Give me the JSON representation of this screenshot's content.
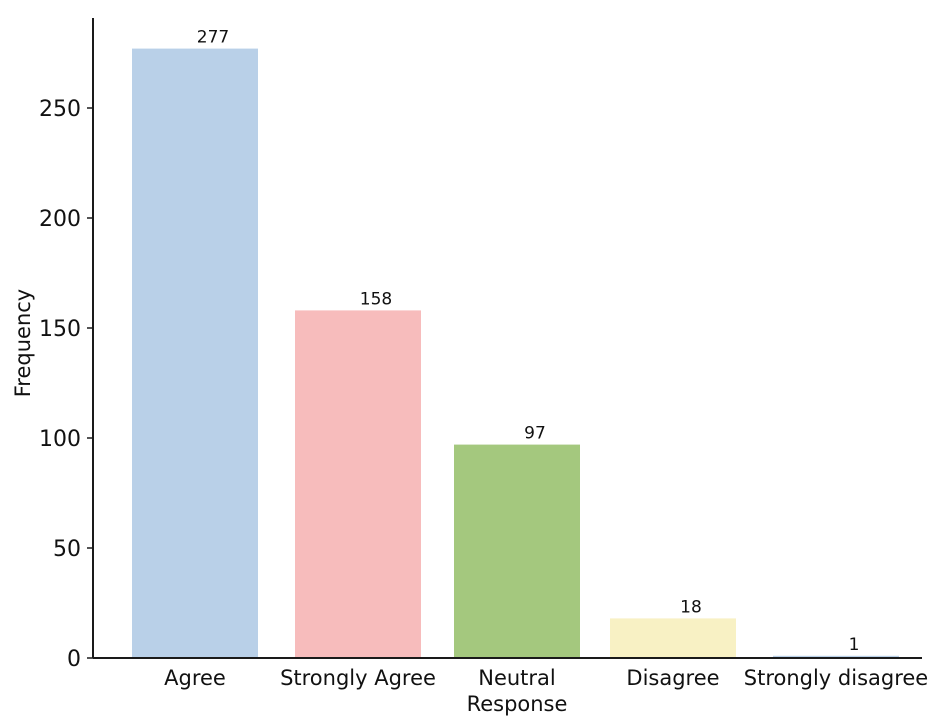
{
  "chart_data": {
    "type": "bar",
    "title": "",
    "xlabel": "",
    "ylabel": "Frequency",
    "categories": [
      "Agree",
      "Strongly Agree",
      "Neutral Response",
      "Disagree",
      "Strongly disagree"
    ],
    "category_label_lines": [
      [
        "Agree"
      ],
      [
        "Strongly Agree"
      ],
      [
        "Neutral",
        "Response"
      ],
      [
        "Disagree"
      ],
      [
        "Strongly disagree"
      ]
    ],
    "values": [
      277,
      158,
      97,
      18,
      1
    ],
    "data_labels": [
      "277",
      "158",
      "97",
      "18",
      "1"
    ],
    "colors": [
      "#b9d0e8",
      "#f7bcbc",
      "#a4c87e",
      "#f8f1c4",
      "#b9d0e8"
    ],
    "ylim": [
      0,
      288
    ],
    "yticks": [
      0,
      50,
      100,
      150,
      200,
      250
    ],
    "grid": false,
    "legend": "none"
  }
}
